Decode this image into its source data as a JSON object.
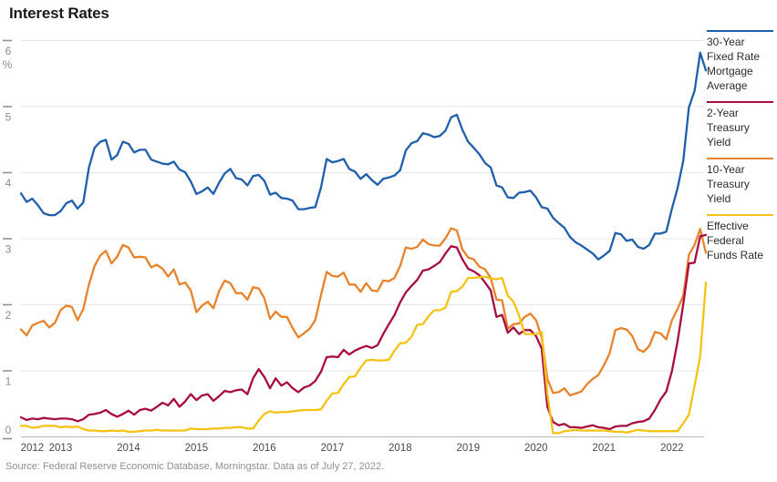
{
  "title": "Interest Rates",
  "source_note": "Source: Federal Reserve Economic Database, Morningstar. Data as of July 27, 2022.",
  "colors": {
    "blue": "#1f5fad",
    "crimson": "#a90d3f",
    "orange": "#e8832c",
    "yellow": "#f5c216",
    "gridline": "#e7e7e7",
    "axis_line": "#b8b8b8",
    "tick": "#8c8c8c",
    "y_label": "#8c8c8c",
    "x_label": "#4a4a4a",
    "title_text": "#1a1a1a",
    "source_text": "#8f8f8f"
  },
  "y_axis": {
    "unit": "%",
    "ticks": [
      6,
      5,
      4,
      3,
      2,
      1,
      0
    ]
  },
  "x_axis": {
    "labels": [
      {
        "text": "2012",
        "month_index": 2
      },
      {
        "text": "2013",
        "month_index": 7
      },
      {
        "text": "2014",
        "month_index": 19
      },
      {
        "text": "2015",
        "month_index": 31
      },
      {
        "text": "2016",
        "month_index": 43
      },
      {
        "text": "2017",
        "month_index": 55
      },
      {
        "text": "2018",
        "month_index": 67
      },
      {
        "text": "2019",
        "month_index": 79
      },
      {
        "text": "2020",
        "month_index": 91
      },
      {
        "text": "2021",
        "month_index": 103
      },
      {
        "text": "2022",
        "month_index": 115
      }
    ]
  },
  "chart_data": {
    "type": "line",
    "title": "Interest Rates",
    "ylabel": "%",
    "ylim": [
      0,
      6
    ],
    "grid": "horizontal",
    "legend_position": "right",
    "x_start": "2012-06",
    "x_end": "2022-07",
    "x_frequency": "monthly",
    "x_tick_labels": [
      "2012",
      "2013",
      "2014",
      "2015",
      "2016",
      "2017",
      "2018",
      "2019",
      "2020",
      "2021",
      "2022"
    ],
    "series": [
      {
        "name": "30-Year Fixed Rate Mortgage Average",
        "color": "#1f5fad",
        "values": [
          3.68,
          3.55,
          3.6,
          3.5,
          3.38,
          3.35,
          3.35,
          3.41,
          3.53,
          3.57,
          3.45,
          3.54,
          4.07,
          4.37,
          4.46,
          4.49,
          4.19,
          4.26,
          4.46,
          4.43,
          4.3,
          4.34,
          4.34,
          4.19,
          4.16,
          4.13,
          4.12,
          4.16,
          4.04,
          4.0,
          3.86,
          3.67,
          3.71,
          3.77,
          3.67,
          3.84,
          3.98,
          4.05,
          3.91,
          3.89,
          3.8,
          3.94,
          3.96,
          3.87,
          3.66,
          3.69,
          3.61,
          3.6,
          3.57,
          3.44,
          3.44,
          3.46,
          3.47,
          3.77,
          4.2,
          4.15,
          4.17,
          4.2,
          4.05,
          4.01,
          3.9,
          3.97,
          3.88,
          3.81,
          3.9,
          3.92,
          3.95,
          4.03,
          4.33,
          4.44,
          4.47,
          4.59,
          4.57,
          4.53,
          4.55,
          4.63,
          4.83,
          4.87,
          4.64,
          4.46,
          4.37,
          4.27,
          4.14,
          4.07,
          3.8,
          3.77,
          3.62,
          3.61,
          3.69,
          3.7,
          3.72,
          3.62,
          3.47,
          3.45,
          3.31,
          3.23,
          3.16,
          3.02,
          2.94,
          2.89,
          2.83,
          2.77,
          2.68,
          2.74,
          2.81,
          3.08,
          3.06,
          2.96,
          2.98,
          2.87,
          2.84,
          2.9,
          3.07,
          3.07,
          3.1,
          3.45,
          3.76,
          4.17,
          4.98,
          5.23,
          5.81,
          5.54
        ]
      },
      {
        "name": "2-Year Treasury Yield",
        "color": "#a90d3f",
        "values": [
          0.29,
          0.25,
          0.27,
          0.26,
          0.28,
          0.27,
          0.26,
          0.27,
          0.27,
          0.26,
          0.23,
          0.26,
          0.33,
          0.34,
          0.36,
          0.4,
          0.34,
          0.3,
          0.34,
          0.39,
          0.33,
          0.4,
          0.42,
          0.39,
          0.45,
          0.51,
          0.47,
          0.57,
          0.45,
          0.53,
          0.64,
          0.55,
          0.62,
          0.64,
          0.54,
          0.61,
          0.69,
          0.67,
          0.7,
          0.71,
          0.64,
          0.88,
          1.02,
          0.9,
          0.73,
          0.88,
          0.77,
          0.82,
          0.73,
          0.67,
          0.74,
          0.77,
          0.84,
          0.98,
          1.2,
          1.21,
          1.2,
          1.31,
          1.24,
          1.3,
          1.34,
          1.37,
          1.34,
          1.38,
          1.55,
          1.7,
          1.84,
          2.03,
          2.18,
          2.28,
          2.37,
          2.51,
          2.53,
          2.58,
          2.64,
          2.77,
          2.88,
          2.86,
          2.68,
          2.54,
          2.5,
          2.44,
          2.33,
          2.21,
          1.81,
          1.84,
          1.57,
          1.65,
          1.55,
          1.61,
          1.61,
          1.52,
          1.33,
          0.45,
          0.22,
          0.17,
          0.19,
          0.14,
          0.14,
          0.13,
          0.15,
          0.17,
          0.14,
          0.13,
          0.11,
          0.15,
          0.16,
          0.16,
          0.2,
          0.22,
          0.23,
          0.27,
          0.4,
          0.56,
          0.68,
          0.99,
          1.44,
          2.0,
          2.62,
          2.63,
          3.03,
          3.05
        ]
      },
      {
        "name": "10-Year Treasury Yield",
        "color": "#e8832c",
        "values": [
          1.62,
          1.53,
          1.68,
          1.72,
          1.75,
          1.65,
          1.72,
          1.91,
          1.98,
          1.96,
          1.76,
          1.93,
          2.3,
          2.58,
          2.74,
          2.81,
          2.62,
          2.72,
          2.9,
          2.86,
          2.71,
          2.72,
          2.71,
          2.56,
          2.6,
          2.54,
          2.42,
          2.53,
          2.3,
          2.33,
          2.21,
          1.88,
          1.98,
          2.04,
          1.94,
          2.2,
          2.36,
          2.32,
          2.17,
          2.17,
          2.07,
          2.26,
          2.24,
          2.09,
          1.78,
          1.89,
          1.81,
          1.81,
          1.64,
          1.5,
          1.56,
          1.63,
          1.76,
          2.14,
          2.49,
          2.43,
          2.42,
          2.48,
          2.3,
          2.3,
          2.19,
          2.32,
          2.21,
          2.2,
          2.36,
          2.35,
          2.4,
          2.58,
          2.86,
          2.84,
          2.87,
          2.98,
          2.91,
          2.89,
          2.89,
          3.0,
          3.15,
          3.12,
          2.83,
          2.71,
          2.68,
          2.57,
          2.53,
          2.4,
          2.07,
          2.06,
          1.63,
          1.7,
          1.71,
          1.81,
          1.86,
          1.76,
          1.5,
          0.87,
          0.66,
          0.67,
          0.73,
          0.62,
          0.65,
          0.68,
          0.79,
          0.87,
          0.93,
          1.08,
          1.26,
          1.61,
          1.64,
          1.62,
          1.52,
          1.32,
          1.28,
          1.37,
          1.58,
          1.56,
          1.47,
          1.76,
          1.93,
          2.13,
          2.75,
          2.9,
          3.14,
          2.78
        ]
      },
      {
        "name": "Effective Federal Funds Rate",
        "color": "#f5c216",
        "values": [
          0.16,
          0.16,
          0.13,
          0.14,
          0.16,
          0.16,
          0.16,
          0.14,
          0.15,
          0.14,
          0.15,
          0.11,
          0.09,
          0.09,
          0.08,
          0.08,
          0.09,
          0.08,
          0.09,
          0.07,
          0.07,
          0.08,
          0.09,
          0.09,
          0.1,
          0.09,
          0.09,
          0.09,
          0.09,
          0.09,
          0.12,
          0.11,
          0.11,
          0.11,
          0.12,
          0.12,
          0.13,
          0.13,
          0.14,
          0.14,
          0.12,
          0.12,
          0.24,
          0.34,
          0.38,
          0.36,
          0.37,
          0.37,
          0.38,
          0.39,
          0.4,
          0.4,
          0.4,
          0.41,
          0.54,
          0.65,
          0.66,
          0.79,
          0.9,
          0.91,
          1.04,
          1.15,
          1.16,
          1.15,
          1.15,
          1.16,
          1.3,
          1.41,
          1.42,
          1.51,
          1.69,
          1.7,
          1.82,
          1.91,
          1.91,
          1.95,
          2.19,
          2.2,
          2.27,
          2.4,
          2.4,
          2.41,
          2.42,
          2.39,
          2.38,
          2.4,
          2.13,
          2.04,
          1.83,
          1.55,
          1.55,
          1.55,
          1.58,
          0.65,
          0.05,
          0.05,
          0.08,
          0.09,
          0.1,
          0.09,
          0.09,
          0.09,
          0.09,
          0.09,
          0.08,
          0.07,
          0.07,
          0.06,
          0.08,
          0.1,
          0.09,
          0.08,
          0.08,
          0.08,
          0.08,
          0.08,
          0.08,
          0.2,
          0.33,
          0.77,
          1.21,
          2.33
        ]
      }
    ]
  }
}
